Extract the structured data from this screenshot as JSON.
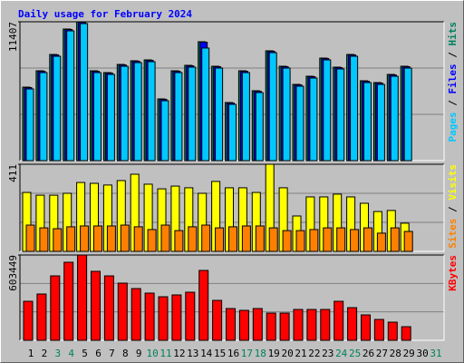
{
  "title": "Daily usage for February 2024",
  "chart_data": [
    {
      "type": "bar",
      "ylim": [
        0,
        11407
      ],
      "yticks": [
        11407
      ],
      "series": [
        {
          "name": "Hits",
          "color": "#00805c",
          "values": [
            6039,
            7381,
            8723,
            10811,
            11407,
            7381,
            7232,
            7903,
            8202,
            8276,
            5070,
            7381,
            7829,
            9767,
            7754,
            4772,
            7381,
            5741,
            9022,
            7754,
            6263,
            6934,
            8425,
            7680,
            8723,
            6561,
            6412,
            7083,
            7754,
            null,
            null
          ]
        },
        {
          "name": "Files",
          "color": "#0000ff",
          "values": [
            5999,
            7341,
            8683,
            10771,
            11367,
            7341,
            7192,
            7863,
            8162,
            8236,
            5030,
            7341,
            7789,
            9727,
            7714,
            4732,
            7341,
            5701,
            8982,
            7714,
            6223,
            6894,
            8385,
            7640,
            8683,
            6521,
            6372,
            7043,
            7714,
            null,
            null
          ]
        },
        {
          "name": "Pages",
          "color": "#00c8ff",
          "values": [
            5889,
            7231,
            8573,
            10661,
            11257,
            7231,
            7082,
            7753,
            8052,
            8126,
            4920,
            7231,
            7679,
            9247,
            7604,
            4622,
            7231,
            5591,
            8872,
            7604,
            6113,
            6784,
            8275,
            7530,
            8573,
            6411,
            6262,
            6933,
            7604,
            null,
            null
          ]
        }
      ]
    },
    {
      "type": "bar",
      "ylim": [
        0,
        411
      ],
      "yticks": [
        411
      ],
      "series": [
        {
          "name": "Visits",
          "color": "#ffff00",
          "values": [
            278,
            265,
            265,
            274,
            325,
            321,
            313,
            334,
            364,
            317,
            295,
            308,
            300,
            274,
            330,
            300,
            300,
            278,
            411,
            300,
            167,
            257,
            257,
            270,
            257,
            227,
            188,
            193,
            133,
            null,
            null
          ]
        },
        {
          "name": "Sites",
          "color": "#ff8000",
          "values": [
            124,
            111,
            107,
            116,
            120,
            120,
            120,
            124,
            116,
            103,
            124,
            98,
            116,
            124,
            111,
            116,
            120,
            120,
            111,
            98,
            98,
            103,
            111,
            111,
            103,
            111,
            86,
            111,
            94,
            null,
            null
          ]
        }
      ]
    },
    {
      "type": "bar",
      "ylim": [
        0,
        603449
      ],
      "yticks": [
        603449
      ],
      "categories": [
        "1",
        "2",
        "3",
        "4",
        "5",
        "6",
        "7",
        "8",
        "9",
        "10",
        "11",
        "12",
        "13",
        "14",
        "15",
        "16",
        "17",
        "18",
        "19",
        "20",
        "21",
        "22",
        "23",
        "24",
        "25",
        "26",
        "27",
        "28",
        "29",
        "30",
        "31"
      ],
      "category_colors": [
        "#000000",
        "#000000",
        "#00805c",
        "#00805c",
        "#000000",
        "#000000",
        "#000000",
        "#000000",
        "#000000",
        "#00805c",
        "#00805c",
        "#000000",
        "#000000",
        "#000000",
        "#000000",
        "#000000",
        "#00805c",
        "#00805c",
        "#000000",
        "#000000",
        "#000000",
        "#000000",
        "#000000",
        "#00805c",
        "#00805c",
        "#000000",
        "#000000",
        "#000000",
        "#000000",
        "#000000",
        "#00805c"
      ],
      "series": [
        {
          "name": "KBytes",
          "color": "#ff0000",
          "values": [
            276060,
            327420,
            455820,
            552120,
            603449,
            487920,
            455820,
            404460,
            365940,
            333840,
            308160,
            321000,
            340260,
            494340,
            282480,
            224700,
            211860,
            224700,
            192600,
            192600,
            218280,
            218280,
            218280,
            276060,
            231120,
            179760,
            147660,
            128400,
            96300,
            null,
            null
          ]
        }
      ]
    }
  ]
}
